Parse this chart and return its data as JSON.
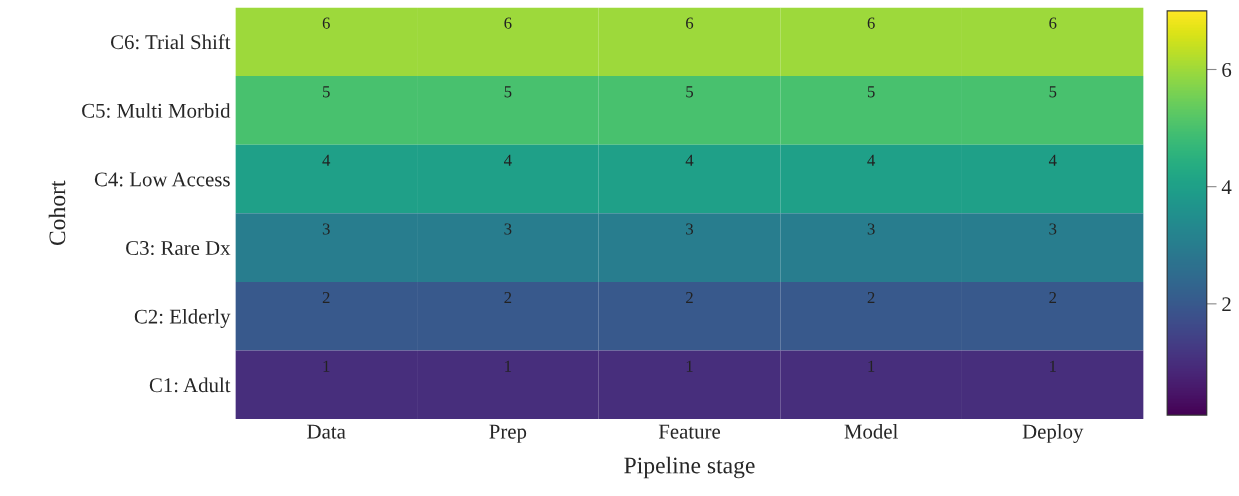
{
  "chart_data": {
    "type": "heatmap",
    "xlabel": "Pipeline stage",
    "ylabel": "Cohort",
    "categories": [
      "Data",
      "Prep",
      "Feature",
      "Model",
      "Deploy"
    ],
    "y_categories": [
      "C6: Trial Shift",
      "C5: Multi Morbid",
      "C4: Low Access",
      "C3: Rare Dx",
      "C2: Elderly",
      "C1: Adult"
    ],
    "cells": [
      [
        6,
        6,
        6,
        6,
        6
      ],
      [
        5,
        5,
        5,
        5,
        5
      ],
      [
        4,
        4,
        4,
        4,
        4
      ],
      [
        3,
        3,
        3,
        3,
        3
      ],
      [
        2,
        2,
        2,
        2,
        2
      ],
      [
        1,
        1,
        1,
        1,
        1
      ]
    ],
    "data_labels": true,
    "clim": [
      0.1,
      7
    ],
    "cticks": [
      2,
      4,
      6
    ]
  }
}
